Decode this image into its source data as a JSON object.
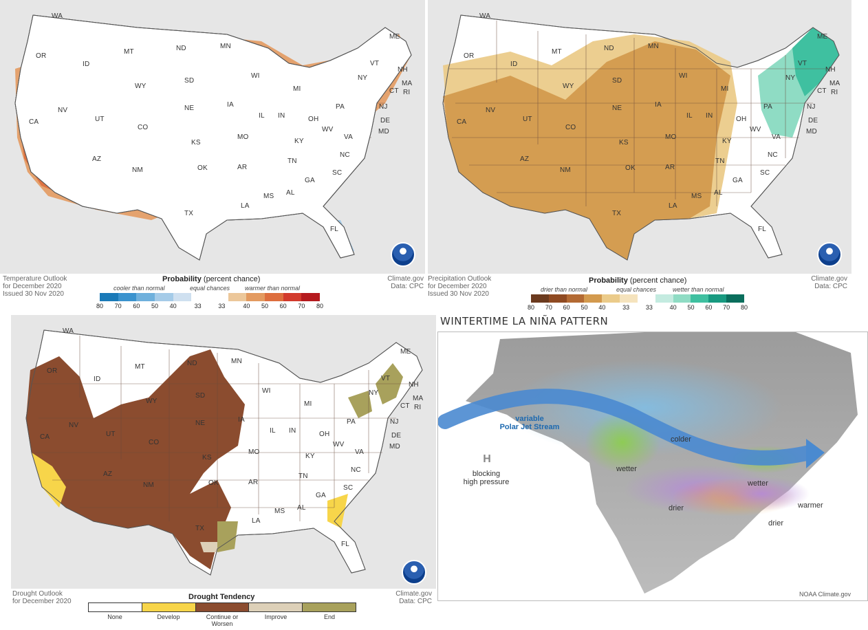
{
  "temperature": {
    "caption": [
      "Temperature Outlook",
      "for December 2020",
      "Issued 30 Nov 2020"
    ],
    "credit": [
      "Climate.gov",
      "Data: CPC"
    ],
    "legend": {
      "title": "Probability",
      "title_suffix": "(percent chance)",
      "low": "cooler than normal",
      "mid": "equal chances",
      "high": "warmer than normal",
      "ticks": [
        "80",
        "70",
        "60",
        "50",
        "40",
        "33",
        "33",
        "40",
        "50",
        "60",
        "70",
        "80"
      ],
      "colors": [
        "#1a7ab8",
        "#3b93ce",
        "#6fb0dc",
        "#a5cbe8",
        "#cfe0f0",
        "#ffffff",
        "#ffffff",
        "#ecc79a",
        "#e39a60",
        "#dd6e3e",
        "#d23a2c",
        "#b51a1e"
      ]
    },
    "states": [
      "WA",
      "OR",
      "MT",
      "ID",
      "ND",
      "MN",
      "SD",
      "WI",
      "WY",
      "NE",
      "IA",
      "NV",
      "UT",
      "CO",
      "IL",
      "IN",
      "OH",
      "CA",
      "KS",
      "MO",
      "KY",
      "AZ",
      "NM",
      "OK",
      "AR",
      "TN",
      "TX",
      "LA",
      "MS",
      "AL",
      "GA",
      "SC",
      "NC",
      "VA",
      "WV",
      "PA",
      "NY",
      "MI",
      "FL",
      "ME",
      "VT",
      "NH",
      "MA",
      "CT",
      "RI",
      "NJ",
      "DE",
      "MD"
    ]
  },
  "precipitation": {
    "caption": [
      "Precipitation Outlook",
      "for December 2020",
      "Issued 30 Nov 2020"
    ],
    "credit": [
      "Climate.gov",
      "Data: CPC"
    ],
    "legend": {
      "title": "Probability",
      "title_suffix": "(percent chance)",
      "low": "drier than normal",
      "mid": "equal chances",
      "high": "wetter than normal",
      "ticks": [
        "80",
        "70",
        "60",
        "50",
        "40",
        "33",
        "33",
        "40",
        "50",
        "60",
        "70",
        "80"
      ],
      "colors": [
        "#6b3a1e",
        "#8f4a22",
        "#b36a33",
        "#d39a4e",
        "#ebcb8a",
        "#f5e3bd",
        "#ffffff",
        "#c4ebe0",
        "#8fdcc4",
        "#3fc0a0",
        "#189a80",
        "#0a6e5c"
      ]
    },
    "states": [
      "WA",
      "OR",
      "MT",
      "ID",
      "ND",
      "MN",
      "SD",
      "WI",
      "WY",
      "NE",
      "IA",
      "NV",
      "UT",
      "CO",
      "IL",
      "IN",
      "OH",
      "CA",
      "KS",
      "MO",
      "KY",
      "AZ",
      "NM",
      "OK",
      "AR",
      "TN",
      "TX",
      "LA",
      "MS",
      "AL",
      "GA",
      "SC",
      "NC",
      "VA",
      "WV",
      "PA",
      "NY",
      "MI",
      "FL",
      "ME",
      "VT",
      "NH",
      "MA",
      "CT",
      "RI",
      "NJ",
      "DE",
      "MD"
    ]
  },
  "drought": {
    "caption": [
      "Drought Outlook",
      "for December 2020"
    ],
    "credit": [
      "Climate.gov",
      "Data: CPC"
    ],
    "legend": {
      "title": "Drought Tendency",
      "categories": [
        "None",
        "Develop",
        "Continue or Worsen",
        "Improve",
        "End"
      ],
      "colors": [
        "#ffffff",
        "#f7d54a",
        "#8b4c2f",
        "#ddd0b8",
        "#a8a15c"
      ]
    },
    "states": [
      "WA",
      "OR",
      "MT",
      "ID",
      "ND",
      "MN",
      "SD",
      "WI",
      "WY",
      "NE",
      "IA",
      "NV",
      "UT",
      "CO",
      "IL",
      "IN",
      "OH",
      "CA",
      "KS",
      "MO",
      "KY",
      "AZ",
      "NM",
      "OK",
      "AR",
      "TN",
      "TX",
      "LA",
      "MS",
      "AL",
      "GA",
      "SC",
      "NC",
      "VA",
      "WV",
      "PA",
      "NY",
      "MI",
      "FL",
      "ME",
      "VT",
      "NH",
      "MA",
      "CT",
      "RI",
      "NJ",
      "DE",
      "MD"
    ]
  },
  "lanina": {
    "title": "WINTERTIME LA NIÑA PATTERN",
    "labels": {
      "jet_line1": "variable",
      "jet_line2": "Polar Jet Stream",
      "h": "H",
      "blocking1": "blocking",
      "blocking2": "high pressure",
      "colder": "colder",
      "wetter_west": "wetter",
      "wetter_east": "wetter",
      "drier_west": "drier",
      "drier_east": "drier",
      "warmer": "warmer"
    },
    "credit": "NOAA Climate.gov"
  }
}
